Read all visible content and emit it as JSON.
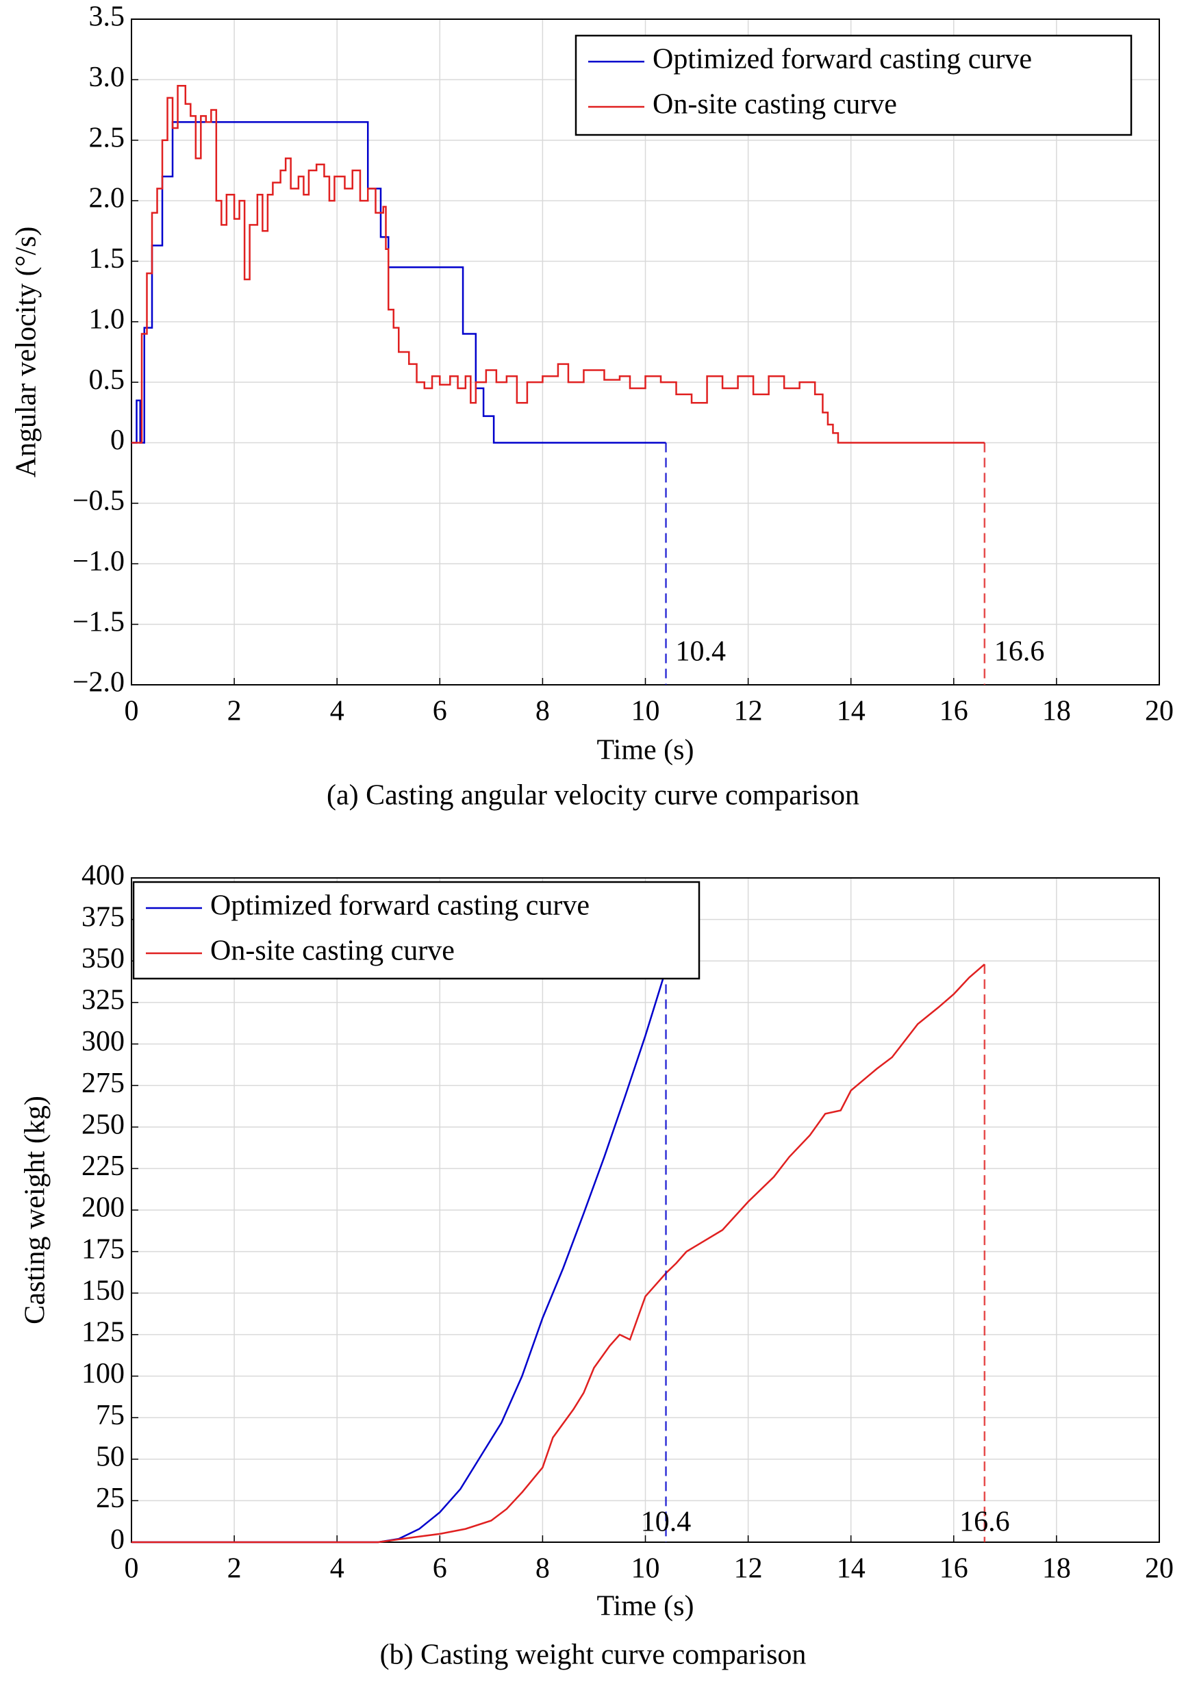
{
  "chart_data": [
    {
      "type": "step",
      "caption": "(a) Casting angular velocity curve comparison",
      "x_label": "Time (s)",
      "y_label": "Angular velocity (°/s)",
      "xlim": [
        0,
        20
      ],
      "xticks": [
        0,
        2,
        4,
        6,
        8,
        10,
        12,
        14,
        16,
        18,
        20
      ],
      "ylim": [
        -2,
        3.5
      ],
      "yticks": [
        {
          "value": -2,
          "label": "−2.0"
        },
        {
          "value": -1.5,
          "label": "−1.5"
        },
        {
          "value": -1,
          "label": "−1.0"
        },
        {
          "value": -0.5,
          "label": "−0.5"
        },
        0,
        0.5,
        {
          "value": 1,
          "label": "1.0"
        },
        1.5,
        {
          "value": 2,
          "label": "2.0"
        },
        2.5,
        {
          "value": 3,
          "label": "3.0"
        },
        3.5
      ],
      "grid": true,
      "legend": "upper right",
      "series": [
        {
          "name": "Optimized forward casting curve",
          "color": "#0000cc",
          "x": [
            0,
            0.1,
            0.17,
            0.25,
            0.4,
            0.6,
            0.8,
            4.6,
            4.85,
            5.0,
            6.45,
            6.7,
            6.85,
            7.05,
            10.4
          ],
          "values": [
            0,
            0.35,
            0,
            0.95,
            1.63,
            2.2,
            2.65,
            2.1,
            1.7,
            1.45,
            0.9,
            0.45,
            0.22,
            0,
            0
          ]
        },
        {
          "name": "On-site casting curve",
          "color": "#e02020",
          "x": [
            0,
            0.2,
            0.3,
            0.4,
            0.5,
            0.6,
            0.7,
            0.8,
            0.9,
            1.05,
            1.15,
            1.25,
            1.35,
            1.45,
            1.55,
            1.65,
            1.75,
            1.85,
            2.0,
            2.1,
            2.2,
            2.3,
            2.45,
            2.55,
            2.65,
            2.75,
            2.9,
            3.0,
            3.1,
            3.25,
            3.35,
            3.45,
            3.6,
            3.75,
            3.85,
            3.95,
            4.15,
            4.3,
            4.45,
            4.6,
            4.75,
            4.9,
            4.95,
            5.0,
            5.1,
            5.2,
            5.4,
            5.55,
            5.7,
            5.85,
            6.0,
            6.2,
            6.35,
            6.5,
            6.6,
            6.7,
            6.9,
            7.1,
            7.3,
            7.5,
            7.7,
            8.0,
            8.3,
            8.5,
            8.8,
            9.2,
            9.5,
            9.7,
            10.0,
            10.3,
            10.6,
            10.9,
            11.2,
            11.5,
            11.8,
            12.1,
            12.4,
            12.7,
            13.0,
            13.3,
            13.45,
            13.55,
            13.65,
            13.75,
            16.6
          ],
          "values": [
            0,
            0.9,
            1.4,
            1.9,
            2.1,
            2.5,
            2.85,
            2.6,
            2.95,
            2.8,
            2.7,
            2.35,
            2.7,
            2.65,
            2.75,
            2.0,
            1.8,
            2.05,
            1.85,
            2.0,
            1.35,
            1.8,
            2.05,
            1.75,
            2.05,
            2.15,
            2.25,
            2.35,
            2.1,
            2.2,
            2.05,
            2.25,
            2.3,
            2.2,
            2.0,
            2.2,
            2.1,
            2.25,
            2.0,
            2.1,
            1.9,
            1.95,
            1.6,
            1.1,
            0.95,
            0.75,
            0.65,
            0.5,
            0.45,
            0.55,
            0.48,
            0.55,
            0.45,
            0.55,
            0.33,
            0.5,
            0.6,
            0.5,
            0.55,
            0.33,
            0.5,
            0.55,
            0.65,
            0.5,
            0.6,
            0.52,
            0.55,
            0.45,
            0.55,
            0.5,
            0.4,
            0.33,
            0.55,
            0.45,
            0.55,
            0.4,
            0.55,
            0.45,
            0.5,
            0.4,
            0.25,
            0.15,
            0.08,
            0,
            0
          ]
        }
      ],
      "annotations": [
        {
          "label": "10.4",
          "x": 10.4,
          "color": "#0000cc"
        },
        {
          "label": "16.6",
          "x": 16.6,
          "color": "#e02020"
        }
      ]
    },
    {
      "type": "line",
      "caption": "(b) Casting weight curve comparison",
      "x_label": "Time (s)",
      "y_label": "Casting weight (kg)",
      "xlim": [
        0,
        20
      ],
      "xticks": [
        0,
        2,
        4,
        6,
        8,
        10,
        12,
        14,
        16,
        18,
        20
      ],
      "ylim": [
        0,
        400
      ],
      "yticks": [
        0,
        25,
        50,
        75,
        100,
        125,
        150,
        175,
        200,
        225,
        250,
        275,
        300,
        325,
        350,
        375,
        400
      ],
      "grid": true,
      "legend": "upper left",
      "series": [
        {
          "name": "Optimized forward casting curve",
          "color": "#0000cc",
          "x": [
            0,
            4.8,
            5.2,
            5.6,
            6,
            6.4,
            6.8,
            7.2,
            7.6,
            8,
            8.4,
            8.8,
            9.2,
            9.6,
            10,
            10.4
          ],
          "values": [
            0,
            0,
            2,
            8,
            18,
            32,
            52,
            72,
            100,
            135,
            165,
            198,
            232,
            268,
            305,
            345
          ]
        },
        {
          "name": "On-site casting curve",
          "color": "#e02020",
          "x": [
            0,
            4.8,
            5.5,
            6,
            6.5,
            7,
            7.3,
            7.6,
            8,
            8.2,
            8.6,
            8.8,
            9,
            9.3,
            9.5,
            9.7,
            10,
            10.4,
            10.6,
            10.8,
            11.5,
            12,
            12.5,
            12.8,
            13.2,
            13.5,
            13.8,
            14,
            14.5,
            14.8,
            15,
            15.3,
            15.7,
            16,
            16.3,
            16.6
          ],
          "values": [
            0,
            0,
            3,
            5,
            8,
            13,
            20,
            30,
            45,
            63,
            80,
            90,
            105,
            118,
            125,
            122,
            148,
            162,
            168,
            175,
            188,
            205,
            220,
            232,
            245,
            258,
            260,
            272,
            285,
            292,
            300,
            312,
            322,
            330,
            340,
            348
          ]
        }
      ],
      "annotations": [
        {
          "label": "10.4",
          "x": 10.4,
          "color": "#0000cc"
        },
        {
          "label": "16.6",
          "x": 16.6,
          "color": "#e02020"
        }
      ]
    }
  ]
}
